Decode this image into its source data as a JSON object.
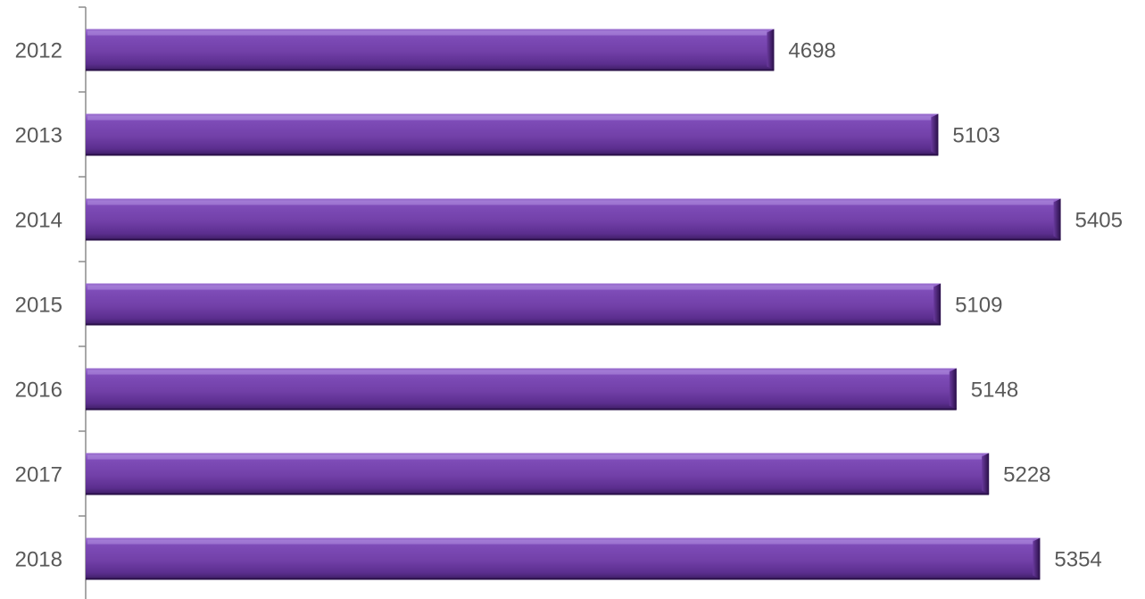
{
  "chart_data": {
    "type": "bar",
    "orientation": "horizontal",
    "categories": [
      "2012",
      "2013",
      "2014",
      "2015",
      "2016",
      "2017",
      "2018"
    ],
    "values": [
      4698,
      5103,
      5405,
      5109,
      5148,
      5228,
      5354
    ],
    "data_labels": [
      "4698",
      "5103",
      "5405",
      "5109",
      "5148",
      "5228",
      "5354"
    ],
    "title": "",
    "xlabel": "",
    "ylabel": "",
    "xlim": [
      3000,
      5450
    ],
    "grid": false,
    "legend": "none",
    "colors": {
      "bar_top": "#9b6fd0",
      "bar_main": "#7240a8",
      "bar_bottom": "#3f1e66",
      "bar_end": "#2a1048",
      "axis": "#8c8c8c",
      "label": "#595959"
    }
  }
}
